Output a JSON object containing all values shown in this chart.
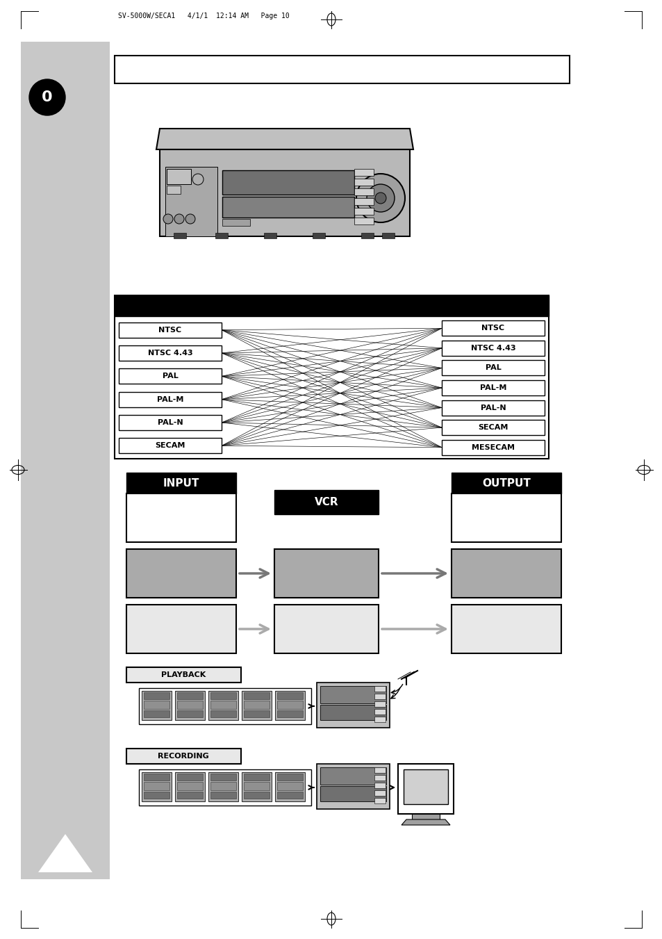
{
  "page_bg": "#ffffff",
  "header_text": "SV-5000W/SECA1   4/1/1  12:14 AM   Page 10",
  "gray_sidebar_color": "#c8c8c8",
  "black_circle_label": "0",
  "input_labels": [
    "NTSC",
    "NTSC 4.43",
    "PAL",
    "PAL-M",
    "PAL-N",
    "SECAM"
  ],
  "output_labels": [
    "NTSC",
    "NTSC 4.43",
    "PAL",
    "PAL-M",
    "PAL-N",
    "SECAM",
    "MESECAM"
  ],
  "playback_label": "PLAYBACK",
  "recording_label": "RECORDING",
  "input_label_text": "INPUT",
  "output_label_text": "OUTPUT"
}
